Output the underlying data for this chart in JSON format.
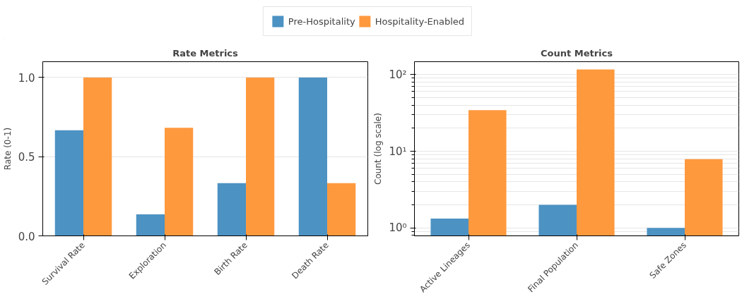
{
  "chart_data": [
    {
      "type": "bar",
      "title": "Rate Metrics",
      "ylabel": "Rate (0-1)",
      "categories": [
        "Survival Rate",
        "Exploration",
        "Birth Rate",
        "Death Rate"
      ],
      "series": [
        {
          "name": "Pre-Hospitality",
          "color": "#4c92c3",
          "values": [
            0.667,
            0.136,
            0.333,
            1.0
          ]
        },
        {
          "name": "Hospitality-Enabled",
          "color": "#ff993e",
          "values": [
            1.0,
            0.683,
            1.0,
            0.333
          ]
        }
      ],
      "ylim": [
        0,
        1.1
      ],
      "yticks": [
        {
          "value": 0,
          "label": "0.0"
        },
        0.5,
        {
          "value": 1,
          "label": "1.0"
        }
      ],
      "grid": "y",
      "legend": "top"
    },
    {
      "type": "bar",
      "title": "Count Metrics",
      "ylabel": "Count (log scale)",
      "categories": [
        "Active Lineages",
        "Final Population",
        "Safe Zones"
      ],
      "series": [
        {
          "color": "#4c92c3",
          "values": [
            1.33,
            2.0,
            1.0
          ]
        },
        {
          "color": "#ff993e",
          "values": [
            34.3,
            116.7,
            7.87
          ]
        }
      ],
      "ylim": [
        0.79,
        147
      ],
      "yticks": [
        {
          "value": 1,
          "label": "10⁰"
        },
        {
          "value": 10,
          "label": "10¹"
        },
        {
          "value": 100,
          "label": "10²"
        }
      ],
      "log": true,
      "grid": "y"
    }
  ]
}
